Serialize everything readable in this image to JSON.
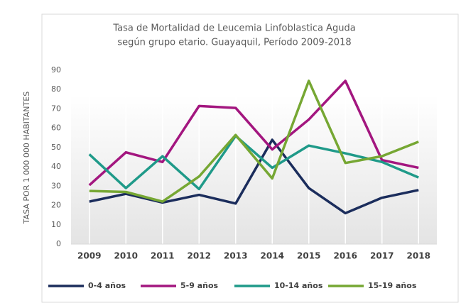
{
  "chart_data": {
    "type": "line",
    "title": [
      "Tasa de Mortalidad de Leucemia Linfoblastica Aguda",
      "según grupo etario. Guayaquil, Período 2009-2018"
    ],
    "y_label": "TASA POR 1 000 000 HABITANTES",
    "categories": [
      "2009",
      "2010",
      "2011",
      "2012",
      "2013",
      "2014",
      "2015",
      "2016",
      "2017",
      "2018"
    ],
    "series": [
      {
        "name": "0-4 años",
        "color": "#1b2d5c",
        "values": [
          22,
          26,
          21.5,
          25.5,
          21,
          54,
          29,
          16,
          24,
          28
        ]
      },
      {
        "name": "5-9 años",
        "color": "#a3167f",
        "values": [
          30.5,
          47.5,
          42.5,
          71.5,
          70.5,
          49,
          64.5,
          84.5,
          43.5,
          39.5
        ]
      },
      {
        "name": "10-14 años",
        "color": "#1f9a89",
        "values": [
          46.5,
          29,
          45.5,
          28.5,
          56,
          39.5,
          51,
          47,
          42.5,
          34.5
        ]
      },
      {
        "name": "15-19 años",
        "color": "#76a733",
        "values": [
          27.5,
          27,
          22,
          35,
          56.5,
          34,
          84.5,
          42,
          45.5,
          53
        ]
      }
    ],
    "ylim": [
      0,
      90
    ],
    "yticks": [
      0,
      10,
      20,
      30,
      40,
      50,
      60,
      70,
      80,
      90
    ],
    "grid": "vertical",
    "legend": "bottom"
  }
}
